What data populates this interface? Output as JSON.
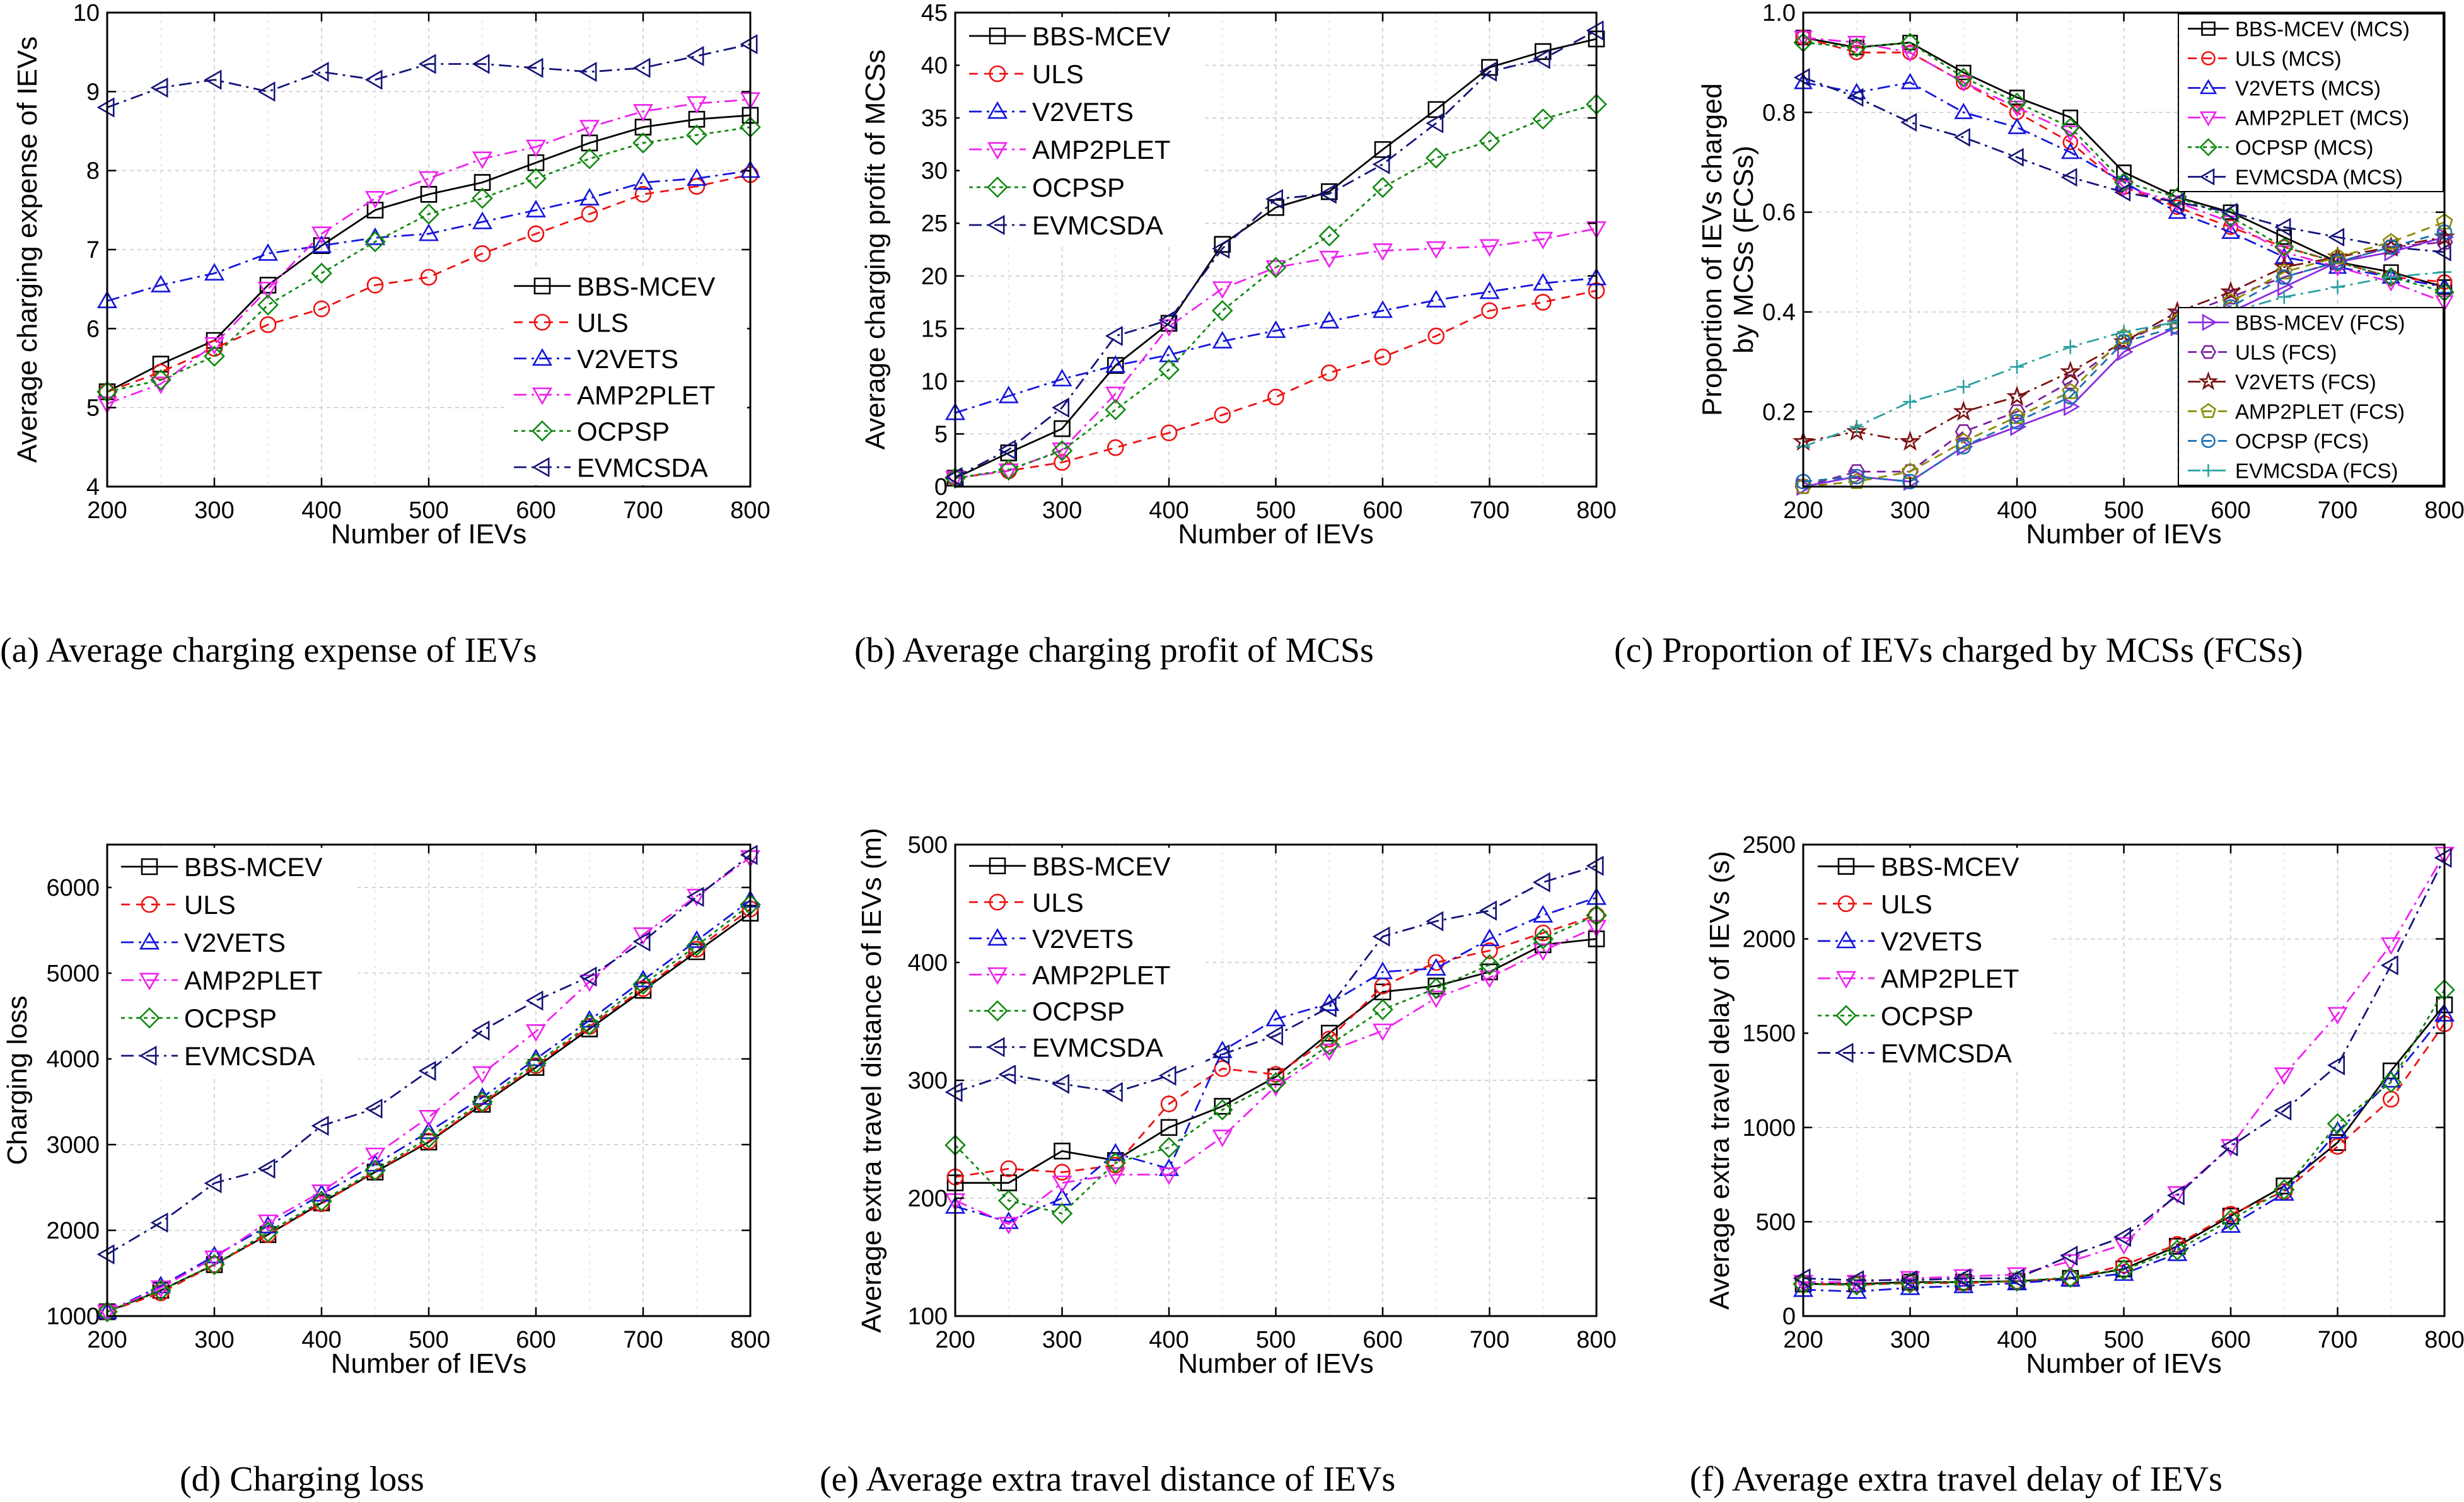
{
  "figure": {
    "legend_label": "Legend"
  },
  "styles": {
    "BBS-MCEV": {
      "color": "#000000",
      "marker": "square",
      "dash": ""
    },
    "ULS": {
      "color": "#ee1111",
      "marker": "circle",
      "dash": "14,10"
    },
    "V2VETS": {
      "color": "#1515dd",
      "marker": "triangle-up",
      "dash": "20,8,4,8"
    },
    "AMP2PLET": {
      "color": "#ee22ee",
      "marker": "triangle-down",
      "dash": "20,8,4,8"
    },
    "OCPSP": {
      "color": "#118811",
      "marker": "diamond",
      "dash": "6,6"
    },
    "EVMCSDA": {
      "color": "#141478",
      "marker": "triangle-left",
      "dash": "20,8,4,8"
    },
    "BBS-MCEV (MCS)": {
      "color": "#000000",
      "marker": "square",
      "dash": ""
    },
    "ULS (MCS)": {
      "color": "#ee1111",
      "marker": "circle",
      "dash": "14,10"
    },
    "V2VETS (MCS)": {
      "color": "#1515dd",
      "marker": "triangle-up",
      "dash": "20,8,4,8"
    },
    "AMP2PLET (MCS)": {
      "color": "#ee22ee",
      "marker": "triangle-down",
      "dash": "20,8,4,8"
    },
    "OCPSP (MCS)": {
      "color": "#118811",
      "marker": "diamond",
      "dash": "6,6"
    },
    "EVMCSDA (MCS)": {
      "color": "#141478",
      "marker": "triangle-left",
      "dash": "20,8,4,8"
    },
    "BBS-MCEV (FCS)": {
      "color": "#8a2be2",
      "marker": "triangle-right",
      "dash": ""
    },
    "ULS (FCS)": {
      "color": "#7a1fa0",
      "marker": "hexagon",
      "dash": "14,10"
    },
    "V2VETS (FCS)": {
      "color": "#7a1010",
      "marker": "star",
      "dash": "20,8,4,8"
    },
    "AMP2PLET (FCS)": {
      "color": "#8b8b00",
      "marker": "pentagon",
      "dash": "14,10"
    },
    "OCPSP (FCS)": {
      "color": "#1a6fb0",
      "marker": "circle",
      "dash": "14,10"
    },
    "EVMCSDA (FCS)": {
      "color": "#2aa0a0",
      "marker": "plus",
      "dash": "20,8,4,8"
    }
  },
  "chart_data": [
    {
      "id": "a",
      "type": "line",
      "caption": "(a)  Average charging expense of IEVs",
      "xlabel": "Number of IEVs",
      "ylabel": "Average charging expense of IEVs",
      "xlim": [
        200,
        800
      ],
      "ylim": [
        4,
        10
      ],
      "xticks": [
        200,
        300,
        400,
        500,
        600,
        700,
        800
      ],
      "yticks": [
        4,
        5,
        6,
        7,
        8,
        9,
        10
      ],
      "legend_position": "lower-right",
      "x": [
        200,
        250,
        300,
        350,
        400,
        450,
        500,
        550,
        600,
        650,
        700,
        750,
        800
      ],
      "series": [
        {
          "name": "BBS-MCEV",
          "values": [
            5.2,
            5.55,
            5.85,
            6.55,
            7.05,
            7.5,
            7.7,
            7.85,
            8.1,
            8.35,
            8.55,
            8.65,
            8.7
          ]
        },
        {
          "name": "ULS",
          "values": [
            5.2,
            5.45,
            5.75,
            6.05,
            6.25,
            6.55,
            6.65,
            6.95,
            7.2,
            7.45,
            7.7,
            7.8,
            7.95
          ]
        },
        {
          "name": "V2VETS",
          "values": [
            6.35,
            6.55,
            6.7,
            6.95,
            7.05,
            7.15,
            7.2,
            7.35,
            7.5,
            7.65,
            7.85,
            7.9,
            8.0
          ]
        },
        {
          "name": "AMP2PLET",
          "values": [
            5.05,
            5.3,
            5.8,
            6.5,
            7.2,
            7.65,
            7.9,
            8.15,
            8.3,
            8.55,
            8.75,
            8.85,
            8.9
          ]
        },
        {
          "name": "OCPSP",
          "values": [
            5.2,
            5.35,
            5.65,
            6.3,
            6.7,
            7.1,
            7.45,
            7.65,
            7.9,
            8.15,
            8.35,
            8.45,
            8.55
          ]
        },
        {
          "name": "EVMCSDA",
          "values": [
            8.8,
            9.05,
            9.15,
            9.0,
            9.25,
            9.15,
            9.35,
            9.35,
            9.3,
            9.25,
            9.3,
            9.45,
            9.6
          ]
        }
      ]
    },
    {
      "id": "b",
      "type": "line",
      "caption": "(b)  Average charging profit of MCSs",
      "xlabel": "Number of IEVs",
      "ylabel": "Average charging profit of MCSs",
      "xlim": [
        200,
        800
      ],
      "ylim": [
        0,
        45
      ],
      "xticks": [
        200,
        300,
        400,
        500,
        600,
        700,
        800
      ],
      "yticks": [
        0,
        5,
        10,
        15,
        20,
        25,
        30,
        35,
        40,
        45
      ],
      "legend_position": "top-left",
      "x": [
        200,
        250,
        300,
        350,
        400,
        450,
        500,
        550,
        600,
        650,
        700,
        750,
        800
      ],
      "series": [
        {
          "name": "BBS-MCEV",
          "values": [
            0.8,
            3.2,
            5.5,
            11.5,
            15.5,
            23.0,
            26.5,
            28.0,
            32.0,
            35.8,
            39.8,
            41.3,
            42.5
          ]
        },
        {
          "name": "ULS",
          "values": [
            0.8,
            1.5,
            2.3,
            3.7,
            5.1,
            6.8,
            8.5,
            10.8,
            12.3,
            14.3,
            16.7,
            17.5,
            18.6
          ]
        },
        {
          "name": "V2VETS",
          "values": [
            7.0,
            8.6,
            10.2,
            11.5,
            12.5,
            13.8,
            14.8,
            15.7,
            16.7,
            17.7,
            18.5,
            19.3,
            19.8
          ]
        },
        {
          "name": "AMP2PLET",
          "values": [
            0.8,
            1.5,
            3.5,
            8.8,
            15.2,
            18.8,
            20.8,
            21.7,
            22.4,
            22.6,
            22.8,
            23.5,
            24.5
          ]
        },
        {
          "name": "OCPSP",
          "values": [
            0.8,
            1.6,
            3.4,
            7.3,
            11.1,
            16.7,
            20.8,
            23.8,
            28.4,
            31.2,
            32.8,
            34.9,
            36.3
          ]
        },
        {
          "name": "EVMCSDA",
          "values": [
            0.9,
            3.5,
            7.5,
            14.3,
            15.8,
            22.6,
            27.3,
            27.8,
            30.6,
            34.5,
            39.4,
            40.6,
            43.3
          ]
        }
      ]
    },
    {
      "id": "c",
      "type": "line",
      "caption": "(c)  Proportion of IEVs charged by MCSs (FCSs)",
      "xlabel": "Number of IEVs",
      "ylabel_line1": "Proportion of IEVs charged",
      "ylabel_line2": "by MCSs (FCSs)",
      "xlim": [
        200,
        800
      ],
      "ylim": [
        0.05,
        1.0
      ],
      "xticks": [
        200,
        300,
        400,
        500,
        600,
        700,
        800
      ],
      "yticks": [
        0.2,
        0.4,
        0.6,
        0.8,
        1.0
      ],
      "legend_position": "top-right (MCS), bottom-right (FCS)",
      "x": [
        200,
        250,
        300,
        350,
        400,
        450,
        500,
        550,
        600,
        650,
        700,
        750,
        800
      ],
      "series": [
        {
          "name": "BBS-MCEV (MCS)",
          "values": [
            0.95,
            0.93,
            0.94,
            0.88,
            0.83,
            0.79,
            0.68,
            0.63,
            0.6,
            0.55,
            0.5,
            0.48,
            0.45
          ]
        },
        {
          "name": "ULS (MCS)",
          "values": [
            0.95,
            0.92,
            0.92,
            0.86,
            0.8,
            0.74,
            0.65,
            0.61,
            0.57,
            0.53,
            0.5,
            0.47,
            0.46
          ]
        },
        {
          "name": "V2VETS (MCS)",
          "values": [
            0.86,
            0.84,
            0.86,
            0.8,
            0.77,
            0.72,
            0.66,
            0.6,
            0.56,
            0.51,
            0.49,
            0.47,
            0.45
          ]
        },
        {
          "name": "AMP2PLET (MCS)",
          "values": [
            0.95,
            0.94,
            0.92,
            0.86,
            0.81,
            0.76,
            0.65,
            0.62,
            0.58,
            0.52,
            0.49,
            0.46,
            0.42
          ]
        },
        {
          "name": "OCPSP (MCS)",
          "values": [
            0.94,
            0.93,
            0.94,
            0.87,
            0.82,
            0.77,
            0.66,
            0.63,
            0.59,
            0.53,
            0.5,
            0.47,
            0.44
          ]
        },
        {
          "name": "EVMCSDA (MCS)",
          "values": [
            0.87,
            0.83,
            0.78,
            0.75,
            0.71,
            0.67,
            0.64,
            0.62,
            0.6,
            0.57,
            0.55,
            0.53,
            0.52
          ]
        },
        {
          "name": "BBS-MCEV (FCS)",
          "values": [
            0.05,
            0.07,
            0.06,
            0.13,
            0.17,
            0.21,
            0.32,
            0.37,
            0.4,
            0.45,
            0.5,
            0.52,
            0.55
          ]
        },
        {
          "name": "ULS (FCS)",
          "values": [
            0.05,
            0.08,
            0.08,
            0.16,
            0.2,
            0.26,
            0.34,
            0.39,
            0.43,
            0.47,
            0.5,
            0.53,
            0.54
          ]
        },
        {
          "name": "V2VETS (FCS)",
          "values": [
            0.14,
            0.16,
            0.14,
            0.2,
            0.23,
            0.28,
            0.34,
            0.4,
            0.44,
            0.49,
            0.51,
            0.53,
            0.55
          ]
        },
        {
          "name": "AMP2PLET (FCS)",
          "values": [
            0.05,
            0.06,
            0.08,
            0.14,
            0.19,
            0.24,
            0.35,
            0.38,
            0.42,
            0.48,
            0.51,
            0.54,
            0.58
          ]
        },
        {
          "name": "OCPSP (FCS)",
          "values": [
            0.06,
            0.07,
            0.06,
            0.13,
            0.18,
            0.23,
            0.34,
            0.37,
            0.41,
            0.47,
            0.5,
            0.53,
            0.56
          ]
        },
        {
          "name": "EVMCSDA (FCS)",
          "values": [
            0.13,
            0.17,
            0.22,
            0.25,
            0.29,
            0.33,
            0.36,
            0.38,
            0.4,
            0.43,
            0.45,
            0.47,
            0.48
          ]
        }
      ]
    },
    {
      "id": "d",
      "type": "line",
      "caption": "(d)  Charging loss",
      "xlabel": "Number of IEVs",
      "ylabel": "Charging loss",
      "xlim": [
        200,
        800
      ],
      "ylim": [
        1000,
        6500
      ],
      "xticks": [
        200,
        300,
        400,
        500,
        600,
        700,
        800
      ],
      "yticks": [
        1000,
        2000,
        3000,
        4000,
        5000,
        6000
      ],
      "legend_position": "top-left",
      "x": [
        200,
        250,
        300,
        350,
        400,
        450,
        500,
        550,
        600,
        650,
        700,
        750,
        800
      ],
      "series": [
        {
          "name": "BBS-MCEV",
          "values": [
            1050,
            1300,
            1600,
            1950,
            2320,
            2680,
            3030,
            3470,
            3900,
            4350,
            4800,
            5250,
            5700
          ]
        },
        {
          "name": "ULS",
          "values": [
            1050,
            1270,
            1600,
            1950,
            2310,
            2690,
            3040,
            3480,
            3920,
            4380,
            4820,
            5280,
            5750
          ]
        },
        {
          "name": "V2VETS",
          "values": [
            1050,
            1350,
            1700,
            2050,
            2420,
            2770,
            3150,
            3550,
            4000,
            4450,
            4920,
            5380,
            5850
          ]
        },
        {
          "name": "AMP2PLET",
          "values": [
            1050,
            1330,
            1680,
            2100,
            2450,
            2880,
            3320,
            3830,
            4320,
            4900,
            5450,
            5900,
            6350
          ]
        },
        {
          "name": "OCPSP",
          "values": [
            1050,
            1300,
            1600,
            1980,
            2340,
            2700,
            3080,
            3500,
            3950,
            4400,
            4870,
            5320,
            5800
          ]
        },
        {
          "name": "EVMCSDA",
          "values": [
            1720,
            2090,
            2550,
            2720,
            3220,
            3420,
            3860,
            4330,
            4680,
            4960,
            5370,
            5890,
            6380
          ]
        }
      ]
    },
    {
      "id": "e",
      "type": "line",
      "caption": "(e)  Average extra travel distance of IEVs",
      "xlabel": "Number of IEVs",
      "ylabel": "Average extra travel distance of IEVs (m)",
      "xlim": [
        200,
        800
      ],
      "ylim": [
        100,
        500
      ],
      "xticks": [
        200,
        300,
        400,
        500,
        600,
        700,
        800
      ],
      "yticks": [
        100,
        200,
        300,
        400,
        500
      ],
      "legend_position": "top-left",
      "x": [
        200,
        250,
        300,
        350,
        400,
        450,
        500,
        550,
        600,
        650,
        700,
        750,
        800
      ],
      "series": [
        {
          "name": "BBS-MCEV",
          "values": [
            213,
            213,
            240,
            232,
            260,
            278,
            303,
            340,
            375,
            380,
            392,
            415,
            420
          ]
        },
        {
          "name": "ULS",
          "values": [
            218,
            225,
            222,
            228,
            280,
            310,
            305,
            335,
            380,
            400,
            410,
            425,
            440
          ]
        },
        {
          "name": "V2VETS",
          "values": [
            193,
            180,
            200,
            238,
            225,
            325,
            352,
            365,
            392,
            395,
            420,
            440,
            455
          ]
        },
        {
          "name": "AMP2PLET",
          "values": [
            198,
            178,
            213,
            220,
            220,
            252,
            295,
            325,
            342,
            370,
            387,
            410,
            430
          ]
        },
        {
          "name": "OCPSP",
          "values": [
            245,
            198,
            187,
            230,
            243,
            275,
            298,
            330,
            360,
            378,
            398,
            420,
            440
          ]
        },
        {
          "name": "EVMCSDA",
          "values": [
            290,
            305,
            297,
            290,
            304,
            322,
            338,
            362,
            422,
            435,
            444,
            468,
            482
          ]
        }
      ]
    },
    {
      "id": "f",
      "type": "line",
      "caption": "(f)  Average extra travel delay of IEVs",
      "xlabel": "Number of IEVs",
      "ylabel": "Average extra travel delay of IEVs (s)",
      "xlim": [
        200,
        800
      ],
      "ylim": [
        0,
        2500
      ],
      "xticks": [
        200,
        300,
        400,
        500,
        600,
        700,
        800
      ],
      "yticks": [
        0,
        500,
        1000,
        1500,
        2000,
        2500
      ],
      "legend_position": "top-left",
      "x": [
        200,
        250,
        300,
        350,
        400,
        450,
        500,
        550,
        600,
        650,
        700,
        750,
        800
      ],
      "series": [
        {
          "name": "BBS-MCEV",
          "values": [
            170,
            170,
            180,
            180,
            185,
            200,
            250,
            370,
            530,
            690,
            920,
            1300,
            1650
          ]
        },
        {
          "name": "ULS",
          "values": [
            170,
            165,
            175,
            175,
            185,
            200,
            270,
            380,
            540,
            660,
            900,
            1150,
            1550
          ]
        },
        {
          "name": "V2VETS",
          "values": [
            140,
            130,
            150,
            160,
            175,
            195,
            225,
            330,
            480,
            650,
            980,
            1250,
            1600
          ]
        },
        {
          "name": "AMP2PLET",
          "values": [
            180,
            180,
            200,
            210,
            220,
            290,
            380,
            650,
            900,
            1280,
            1600,
            1970,
            2450
          ]
        },
        {
          "name": "OCPSP",
          "values": [
            170,
            165,
            175,
            180,
            185,
            205,
            245,
            350,
            510,
            670,
            1020,
            1240,
            1730
          ]
        },
        {
          "name": "EVMCSDA",
          "values": [
            200,
            190,
            190,
            200,
            200,
            320,
            420,
            640,
            900,
            1090,
            1330,
            1860,
            2430
          ]
        }
      ]
    }
  ]
}
